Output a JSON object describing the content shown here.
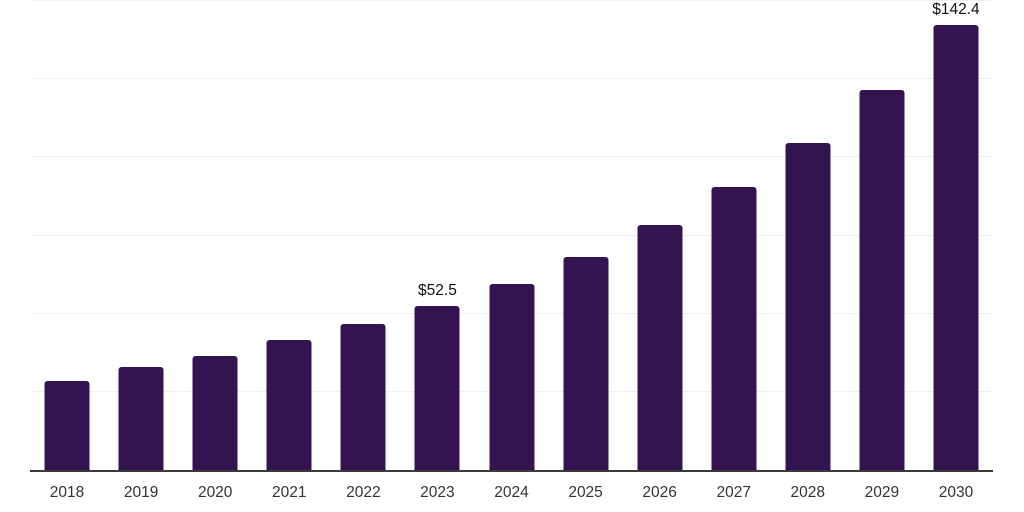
{
  "chart_data": {
    "type": "bar",
    "title": "",
    "xlabel": "",
    "ylabel": "",
    "categories": [
      "2018",
      "2019",
      "2020",
      "2021",
      "2022",
      "2023",
      "2024",
      "2025",
      "2026",
      "2027",
      "2028",
      "2029",
      "2030"
    ],
    "values": [
      28.6,
      32.9,
      36.5,
      41.6,
      46.7,
      52.5,
      59.4,
      68.0,
      78.5,
      90.4,
      104.7,
      121.7,
      142.4
    ],
    "data_labels": [
      "",
      "",
      "",
      "",
      "",
      "$52.5",
      "",
      "",
      "",
      "",
      "",
      "",
      "$142.4"
    ],
    "ylim": [
      0,
      150
    ],
    "gridline_step": 25,
    "grid": "horizontal",
    "legend": "none",
    "y_axis_labels_visible": false,
    "colors": {
      "bar": "#341450",
      "grid": "#f0f0f1",
      "axis": "#3a3a3a",
      "tick_label": "#333333",
      "data_label": "#111111",
      "background": "#ffffff"
    }
  }
}
